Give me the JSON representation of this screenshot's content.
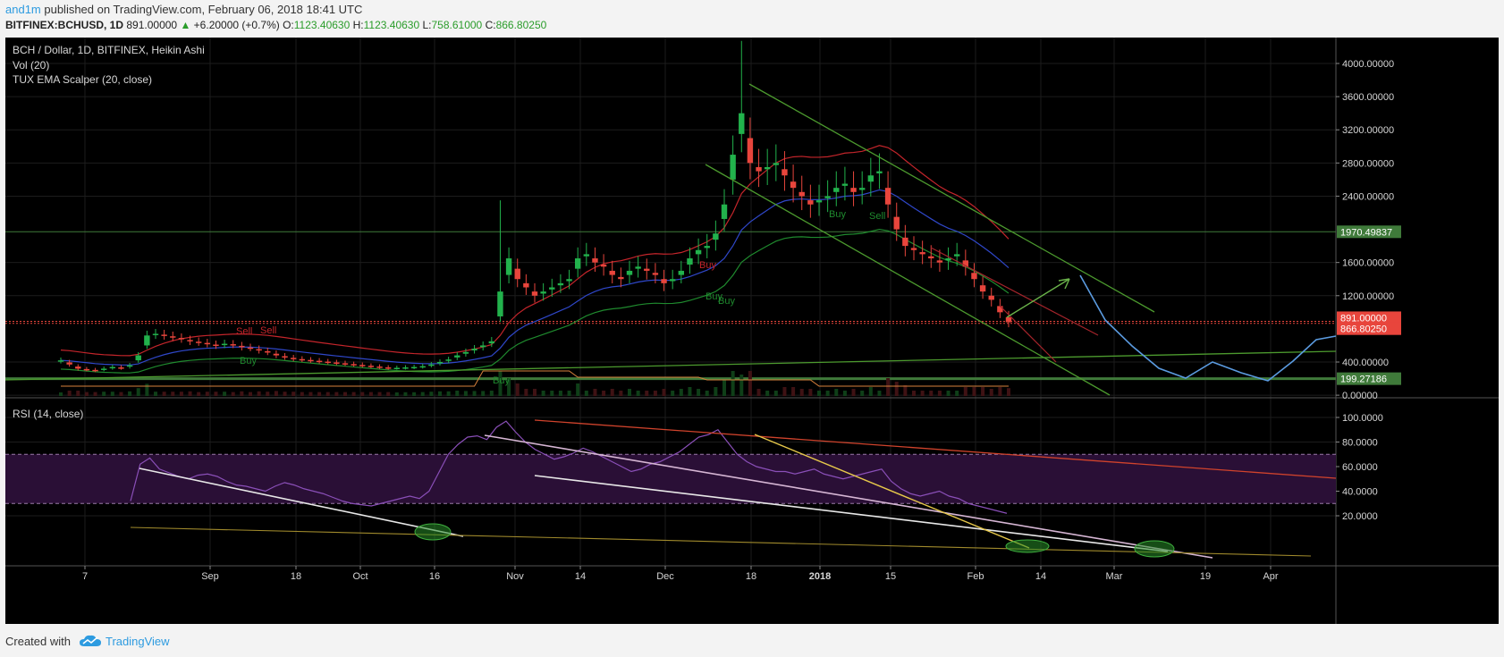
{
  "header": {
    "user": "and1m",
    "published": " published on TradingView.com, February 06, 2018 18:41 UTC",
    "symbol": "BITFINEX:BCHUSD, 1D",
    "last": "891.00000",
    "change": "+6.20000 (+0.7%)",
    "o_label": "O:",
    "o_value": "1123.40630",
    "h_label": "H:",
    "h_value": "1123.40630",
    "l_label": "L:",
    "l_value": "758.61000",
    "c_label": "C:",
    "c_value": "866.80250"
  },
  "legend": {
    "main": "BCH / Dollar, 1D, BITFINEX, Heikin Ashi",
    "vol": "Vol (20)",
    "ema": "TUX EMA Scalper (20, close)",
    "rsi": "RSI (14, close)"
  },
  "footer": {
    "created": "Created with",
    "brand": "TradingView"
  },
  "colors": {
    "bg": "#000000",
    "up": "#22b24c",
    "down": "#e8453c",
    "rsi": "#8a4fb8",
    "accent": "#2d9be0"
  },
  "chart_data": [
    {
      "type": "candlestick",
      "title": "BCH / Dollar, 1D, BITFINEX, Heikin Ashi",
      "x_ticks": [
        "7",
        "Sep",
        "18",
        "Oct",
        "16",
        "Nov",
        "14",
        "Dec",
        "18",
        "2018",
        "15",
        "Feb",
        "14",
        "Mar",
        "19",
        "Apr"
      ],
      "y_ticks": [
        "4000.00000",
        "3600.00000",
        "3200.00000",
        "2800.00000",
        "2400.00000",
        "1600.00000",
        "1200.00000",
        "400.00000",
        "0.00000"
      ],
      "ylim": [
        0,
        4200
      ],
      "price_marks": [
        {
          "label": "1970.49837",
          "value": 1970.5,
          "color": "#3f7a3a"
        },
        {
          "label": "891.00000",
          "value": 891,
          "color": "#e8453c"
        },
        {
          "label": "866.80250",
          "value": 866.8,
          "color": "#e8453c"
        },
        {
          "label": "199.27186",
          "value": 199.3,
          "color": "#3f7a3a"
        }
      ],
      "annotations": [
        "Sell",
        "Sell",
        "Buy",
        "Buy",
        "Sell",
        "Buy",
        "Buy",
        "Buy",
        "Buy"
      ],
      "close_series": [
        420,
        370,
        320,
        310,
        300,
        320,
        340,
        330,
        360,
        480,
        720,
        740,
        720,
        700,
        680,
        650,
        640,
        620,
        600,
        620,
        610,
        580,
        570,
        540,
        520,
        480,
        460,
        440,
        430,
        420,
        410,
        400,
        390,
        380,
        370,
        360,
        350,
        340,
        330,
        330,
        335,
        340,
        350,
        370,
        400,
        430,
        480,
        520,
        560,
        600,
        650,
        1250,
        1650,
        1400,
        1300,
        1200,
        1250,
        1300,
        1350,
        1400,
        1650,
        1700,
        1600,
        1550,
        1450,
        1400,
        1500,
        1550,
        1500,
        1450,
        1350,
        1400,
        1500,
        1650,
        1750,
        1800,
        1950,
        2300,
        2900,
        3400,
        2800,
        2700,
        2750,
        2800,
        2650,
        2500,
        2400,
        2300,
        2350,
        2400,
        2500,
        2550,
        2450,
        2500,
        2650,
        2700,
        2300,
        2000,
        1800,
        1750,
        1700,
        1650,
        1600,
        1650,
        1700,
        1550,
        1400,
        1250,
        1150,
        1000,
        880
      ]
    },
    {
      "type": "line",
      "title": "RSI (14, close)",
      "y_ticks": [
        "100.0000",
        "80.0000",
        "60.0000",
        "40.0000",
        "20.0000"
      ],
      "ylim": [
        10,
        105
      ],
      "bands": [
        30,
        70
      ],
      "series": [
        {
          "values": [
            32,
            62,
            67,
            58,
            55,
            52,
            50,
            53,
            54,
            52,
            48,
            45,
            44,
            42,
            40,
            44,
            47,
            45,
            42,
            40,
            38,
            35,
            32,
            30,
            29,
            28,
            30,
            32,
            34,
            36,
            34,
            40,
            55,
            70,
            78,
            84,
            85,
            82,
            92,
            97,
            88,
            80,
            74,
            70,
            66,
            68,
            71,
            75,
            72,
            68,
            64,
            60,
            56,
            58,
            62,
            64,
            68,
            72,
            78,
            84,
            86,
            90,
            80,
            70,
            64,
            60,
            58,
            56,
            56,
            54,
            56,
            58,
            54,
            52,
            50,
            52,
            54,
            56,
            58,
            48,
            42,
            38,
            36,
            38,
            40,
            36,
            34,
            30,
            28,
            26,
            24,
            22
          ]
        }
      ]
    }
  ]
}
